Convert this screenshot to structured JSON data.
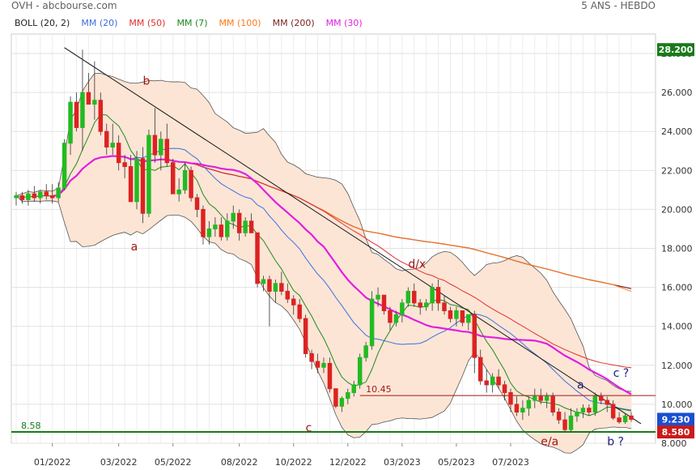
{
  "header": {
    "title": "OVH - abcbourse.com",
    "period": "5 ANS - HEBDO"
  },
  "legend": [
    {
      "label": "BOLL (20, 2)",
      "color": "#222222"
    },
    {
      "label": "MM (20)",
      "color": "#3a6fe0"
    },
    {
      "label": "MM (50)",
      "color": "#e03030"
    },
    {
      "label": "MM (7)",
      "color": "#1f8a1f"
    },
    {
      "label": "MM (100)",
      "color": "#ff7a1a"
    },
    {
      "label": "MM (200)",
      "color": "#7a1f1f"
    },
    {
      "label": "MM (30)",
      "color": "#e020e0"
    }
  ],
  "chart_data": {
    "type": "candlestick",
    "ylim": [
      8.0,
      29.0
    ],
    "yticks": [
      "8.000",
      "10.000",
      "12.000",
      "14.000",
      "16.000",
      "18.000",
      "20.000",
      "22.000",
      "24.000",
      "26.000",
      "28.000"
    ],
    "xticks": [
      "01/2022",
      "03/2022",
      "05/2022",
      "08/2022",
      "10/2022",
      "12/2022",
      "03/2023",
      "05/2023",
      "07/2023"
    ],
    "grid": true,
    "last_price": "9.230",
    "high_label": "28.200",
    "low_label": "8.580",
    "levels": [
      {
        "label": "8.58",
        "value": 8.58,
        "color": "#1a7a1a"
      },
      {
        "label": "10.45",
        "value": 10.45,
        "color": "#a01818"
      }
    ],
    "annotations": [
      "b",
      "a",
      "d/x",
      "c",
      "e/a",
      "a",
      "c ?",
      "b ?"
    ],
    "colors": {
      "up": "#22bb22",
      "down": "#dd2222",
      "band_fill": "#fde5d5",
      "band_line": "#555555"
    },
    "candles": [
      [
        20.6,
        20.9,
        20.2,
        20.7
      ],
      [
        20.7,
        20.9,
        20.3,
        20.5
      ],
      [
        20.5,
        21.0,
        20.2,
        20.8
      ],
      [
        20.8,
        21.2,
        20.4,
        20.6
      ],
      [
        20.6,
        21.0,
        20.3,
        20.9
      ],
      [
        20.9,
        21.3,
        20.5,
        20.7
      ],
      [
        20.7,
        21.3,
        20.3,
        20.6
      ],
      [
        20.6,
        21.4,
        20.4,
        21.1
      ],
      [
        21.1,
        23.6,
        21.0,
        23.4
      ],
      [
        23.4,
        25.8,
        22.8,
        25.5
      ],
      [
        25.5,
        26.0,
        24.0,
        24.2
      ],
      [
        24.2,
        28.2,
        23.0,
        26.0
      ],
      [
        26.0,
        27.0,
        25.4,
        25.4
      ],
      [
        25.4,
        27.6,
        24.6,
        25.6
      ],
      [
        25.6,
        26.0,
        23.8,
        24.0
      ],
      [
        24.0,
        24.4,
        22.8,
        23.2
      ],
      [
        23.2,
        24.4,
        22.8,
        23.4
      ],
      [
        23.4,
        23.8,
        22.0,
        22.4
      ],
      [
        22.4,
        22.8,
        21.6,
        22.2
      ],
      [
        22.2,
        22.8,
        20.4,
        20.4
      ],
      [
        20.4,
        23.0,
        20.0,
        22.6
      ],
      [
        22.6,
        23.2,
        19.3,
        19.8
      ],
      [
        19.8,
        24.1,
        19.6,
        23.8
      ],
      [
        23.8,
        25.2,
        22.4,
        22.8
      ],
      [
        22.8,
        24.0,
        22.0,
        23.6
      ],
      [
        23.6,
        24.4,
        22.2,
        22.4
      ],
      [
        22.4,
        22.6,
        20.8,
        20.8
      ],
      [
        20.8,
        21.6,
        20.4,
        21.0
      ],
      [
        21.0,
        22.4,
        20.8,
        22.0
      ],
      [
        22.0,
        22.2,
        20.4,
        20.6
      ],
      [
        20.6,
        20.8,
        19.6,
        20.0
      ],
      [
        20.0,
        20.2,
        18.2,
        18.6
      ],
      [
        18.6,
        19.4,
        18.2,
        19.0
      ],
      [
        19.0,
        19.6,
        18.6,
        19.2
      ],
      [
        19.2,
        19.6,
        18.4,
        18.6
      ],
      [
        18.6,
        19.8,
        18.4,
        19.4
      ],
      [
        19.4,
        20.2,
        19.0,
        19.8
      ],
      [
        19.8,
        20.0,
        18.4,
        18.8
      ],
      [
        18.8,
        19.6,
        18.6,
        19.4
      ],
      [
        19.4,
        19.8,
        18.8,
        18.8
      ],
      [
        18.8,
        18.8,
        16.0,
        16.2
      ],
      [
        16.2,
        16.6,
        15.8,
        16.4
      ],
      [
        16.4,
        16.6,
        14.0,
        15.8
      ],
      [
        15.8,
        16.4,
        15.2,
        16.2
      ],
      [
        16.2,
        16.8,
        15.6,
        15.8
      ],
      [
        15.8,
        16.2,
        15.2,
        15.4
      ],
      [
        15.4,
        15.6,
        14.6,
        15.1
      ],
      [
        15.1,
        15.4,
        14.2,
        14.4
      ],
      [
        14.4,
        14.6,
        12.4,
        12.6
      ],
      [
        12.6,
        12.8,
        11.8,
        12.2
      ],
      [
        12.2,
        12.6,
        11.6,
        11.9
      ],
      [
        11.9,
        12.4,
        11.6,
        12.1
      ],
      [
        12.1,
        12.4,
        10.6,
        10.8
      ],
      [
        10.8,
        10.8,
        9.8,
        9.9
      ],
      [
        9.9,
        10.4,
        9.6,
        10.3
      ],
      [
        10.3,
        10.8,
        10.0,
        10.6
      ],
      [
        10.6,
        11.2,
        10.4,
        11.0
      ],
      [
        11.0,
        12.6,
        10.8,
        12.4
      ],
      [
        12.4,
        13.2,
        12.2,
        13.0
      ],
      [
        13.0,
        15.8,
        12.8,
        15.4
      ],
      [
        15.4,
        16.0,
        15.0,
        15.6
      ],
      [
        15.6,
        15.6,
        14.6,
        14.8
      ],
      [
        14.8,
        15.0,
        13.8,
        14.2
      ],
      [
        14.2,
        14.8,
        14.0,
        14.6
      ],
      [
        14.6,
        15.4,
        14.2,
        15.2
      ],
      [
        15.2,
        16.0,
        15.0,
        15.8
      ],
      [
        15.8,
        16.2,
        15.0,
        15.2
      ],
      [
        15.2,
        15.4,
        14.6,
        15.0
      ],
      [
        15.0,
        15.4,
        14.8,
        15.2
      ],
      [
        15.2,
        16.2,
        14.8,
        16.0
      ],
      [
        16.0,
        16.4,
        14.8,
        15.2
      ],
      [
        15.2,
        15.6,
        14.6,
        14.8
      ],
      [
        14.8,
        15.0,
        14.2,
        14.4
      ],
      [
        14.4,
        15.0,
        14.0,
        14.8
      ],
      [
        14.8,
        14.8,
        14.0,
        14.2
      ],
      [
        14.2,
        14.6,
        13.8,
        14.6
      ],
      [
        14.6,
        14.8,
        11.6,
        12.4
      ],
      [
        12.4,
        12.8,
        11.0,
        11.2
      ],
      [
        11.2,
        11.8,
        10.6,
        11.0
      ],
      [
        11.0,
        11.6,
        10.6,
        11.4
      ],
      [
        11.4,
        11.8,
        10.8,
        11.0
      ],
      [
        11.0,
        11.2,
        10.2,
        10.6
      ],
      [
        10.6,
        10.8,
        9.6,
        10.0
      ],
      [
        10.0,
        10.4,
        9.4,
        9.6
      ],
      [
        9.6,
        10.2,
        9.2,
        9.8
      ],
      [
        9.8,
        10.4,
        9.4,
        10.2
      ],
      [
        10.2,
        10.8,
        9.8,
        10.4
      ],
      [
        10.4,
        10.8,
        10.0,
        10.2
      ],
      [
        10.2,
        10.6,
        9.8,
        10.4
      ],
      [
        10.4,
        10.6,
        9.4,
        9.6
      ],
      [
        9.6,
        9.8,
        9.0,
        9.2
      ],
      [
        9.2,
        9.6,
        8.6,
        8.7
      ],
      [
        8.7,
        9.8,
        8.6,
        9.4
      ],
      [
        9.4,
        9.8,
        9.1,
        9.6
      ],
      [
        9.6,
        10.0,
        9.3,
        9.8
      ],
      [
        9.8,
        10.0,
        9.4,
        9.6
      ],
      [
        9.6,
        10.6,
        9.4,
        10.4
      ],
      [
        10.4,
        10.6,
        10.0,
        10.2
      ],
      [
        10.2,
        10.4,
        9.6,
        10.0
      ],
      [
        10.0,
        10.2,
        9.2,
        9.3
      ],
      [
        9.3,
        9.6,
        9.0,
        9.1
      ],
      [
        9.1,
        9.5,
        9.0,
        9.4
      ],
      [
        9.4,
        9.6,
        9.1,
        9.23
      ]
    ]
  }
}
